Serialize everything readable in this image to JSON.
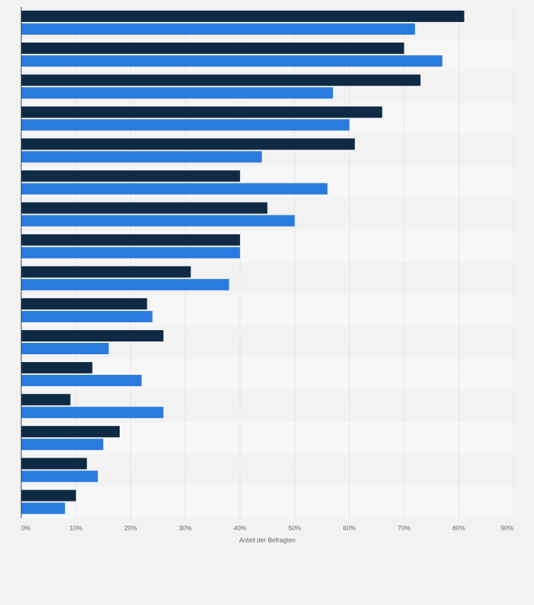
{
  "chart_data": {
    "type": "bar",
    "orientation": "horizontal",
    "title": "",
    "xlabel": "Anteil der Befragten",
    "ylabel": "",
    "xlim": [
      0,
      90
    ],
    "x_ticks": [
      "0%",
      "10%",
      "20%",
      "30%",
      "40%",
      "50%",
      "60%",
      "70%",
      "80%",
      "90%"
    ],
    "grid": true,
    "legend": "none",
    "categories": [
      "",
      "",
      "",
      "",
      "",
      "",
      "",
      "",
      "",
      "",
      "",
      "",
      "",
      "",
      "",
      ""
    ],
    "series": [
      {
        "color": "#0f2a44",
        "values": [
          81,
          70,
          73,
          66,
          61,
          40,
          45,
          40,
          31,
          23,
          26,
          13,
          9,
          18,
          12,
          10
        ]
      },
      {
        "color": "#2a7be0",
        "values": [
          72,
          77,
          57,
          60,
          44,
          56,
          50,
          40,
          38,
          24,
          16,
          22,
          26,
          15,
          14,
          8
        ]
      }
    ],
    "colors": {
      "band_light": "#f7f7f7",
      "band_dark": "#f2f2f2",
      "grid": "#d7d7d7",
      "axis": "#333333",
      "tick_text": "#666666"
    }
  }
}
